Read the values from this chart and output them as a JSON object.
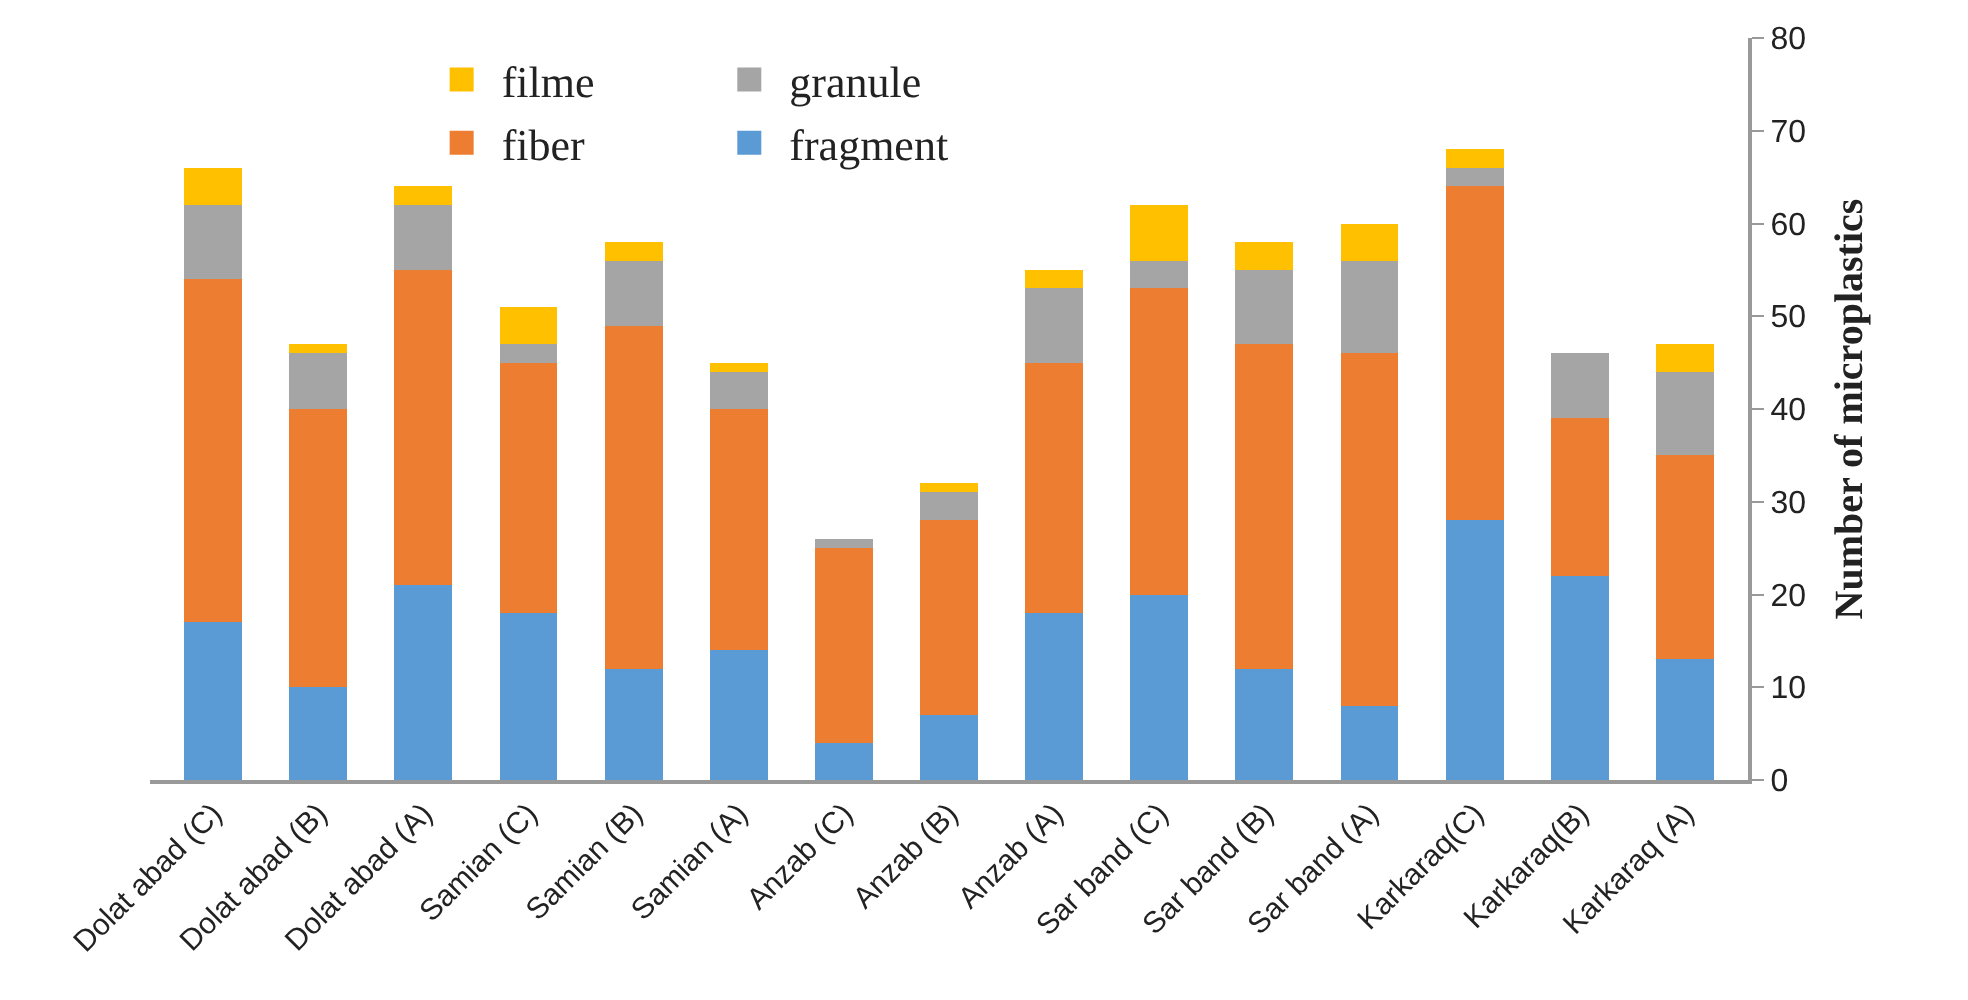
{
  "chart_data": {
    "type": "bar",
    "stacked": true,
    "ylabel": "Number of microplastics",
    "categories": [
      "Dolat abad (C)",
      "Dolat abad (B)",
      "Dolat abad (A)",
      "Samian (C)",
      "Samian (B)",
      "Samian (A)",
      "Anzab (C)",
      "Anzab (B)",
      "Anzab (A)",
      "Sar band (C)",
      "Sar band (B)",
      "Sar band (A)",
      "Karkaraq(C)",
      "Karkaraq(B)",
      "Karkaraq (A)"
    ],
    "series": [
      {
        "name": "fragment",
        "color": "#5b9bd5",
        "values": [
          17,
          10,
          21,
          18,
          12,
          14,
          4,
          7,
          18,
          20,
          12,
          8,
          28,
          22,
          13
        ]
      },
      {
        "name": "fiber",
        "color": "#ed7d31",
        "values": [
          37,
          30,
          34,
          27,
          37,
          26,
          21,
          21,
          27,
          33,
          35,
          38,
          36,
          17,
          22
        ]
      },
      {
        "name": "granule",
        "color": "#a5a5a5",
        "values": [
          8,
          6,
          7,
          2,
          7,
          4,
          1,
          3,
          8,
          3,
          8,
          10,
          2,
          7,
          9
        ]
      },
      {
        "name": "filme",
        "color": "#ffc000",
        "values": [
          4,
          1,
          2,
          4,
          2,
          1,
          0,
          1,
          2,
          6,
          3,
          4,
          2,
          0,
          3
        ]
      }
    ],
    "ylim": [
      0,
      80
    ],
    "yticks": [
      0,
      10,
      20,
      30,
      40,
      50,
      60,
      70,
      80
    ],
    "legend": "top left"
  }
}
